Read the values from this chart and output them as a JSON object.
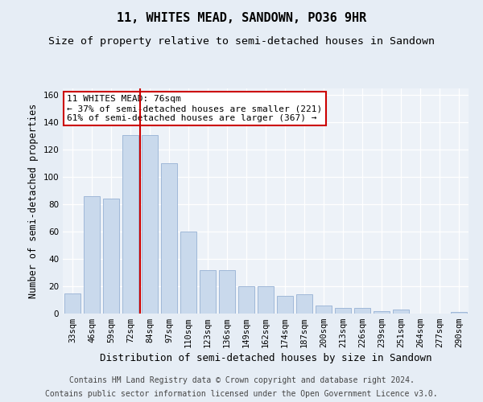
{
  "title": "11, WHITES MEAD, SANDOWN, PO36 9HR",
  "subtitle": "Size of property relative to semi-detached houses in Sandown",
  "xlabel": "Distribution of semi-detached houses by size in Sandown",
  "ylabel": "Number of semi-detached properties",
  "categories": [
    "33sqm",
    "46sqm",
    "59sqm",
    "72sqm",
    "84sqm",
    "97sqm",
    "110sqm",
    "123sqm",
    "136sqm",
    "149sqm",
    "162sqm",
    "174sqm",
    "187sqm",
    "200sqm",
    "213sqm",
    "226sqm",
    "239sqm",
    "251sqm",
    "264sqm",
    "277sqm",
    "290sqm"
  ],
  "values": [
    15,
    86,
    84,
    131,
    131,
    110,
    60,
    32,
    32,
    20,
    20,
    13,
    14,
    6,
    4,
    4,
    2,
    3,
    0,
    0,
    1
  ],
  "bar_color": "#c9d9ec",
  "bar_edge_color": "#a0b8d8",
  "ylim": [
    0,
    165
  ],
  "yticks": [
    0,
    20,
    40,
    60,
    80,
    100,
    120,
    140,
    160
  ],
  "vline_color": "#cc0000",
  "vline_x": 3.5,
  "annotation_line1": "11 WHITES MEAD: 76sqm",
  "annotation_line2": "← 37% of semi-detached houses are smaller (221)",
  "annotation_line3": "61% of semi-detached houses are larger (367) →",
  "annotation_box_color": "#ffffff",
  "annotation_box_edgecolor": "#cc0000",
  "footer1": "Contains HM Land Registry data © Crown copyright and database right 2024.",
  "footer2": "Contains public sector information licensed under the Open Government Licence v3.0.",
  "bg_color": "#e6edf5",
  "plot_bg_color": "#edf2f8",
  "grid_color": "#ffffff",
  "title_fontsize": 11,
  "subtitle_fontsize": 9.5,
  "xlabel_fontsize": 9,
  "ylabel_fontsize": 8.5,
  "tick_fontsize": 7.5,
  "footer_fontsize": 7,
  "annot_fontsize": 8
}
